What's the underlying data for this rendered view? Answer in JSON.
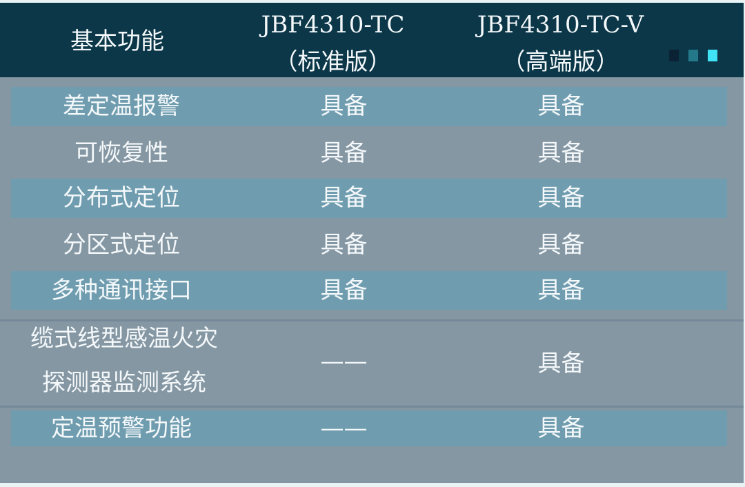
{
  "header": {
    "col1": "基本功能",
    "col2_line1": "JBF4310-TC",
    "col2_line2": "（标准版）",
    "col3_line1": "JBF4310-TC-V",
    "col3_line2": "（高端版）"
  },
  "colors": {
    "header_bg": "#0b3748",
    "body_bg": "#8597a3",
    "stripe_bg": "#6f9daf",
    "indicator": [
      "#0a2233",
      "#23788a",
      "#3fe3f5"
    ]
  },
  "rows": [
    {
      "feature": "差定温报警",
      "standard": "具备",
      "premium": "具备"
    },
    {
      "feature": "可恢复性",
      "standard": "具备",
      "premium": "具备"
    },
    {
      "feature": "分布式定位",
      "standard": "具备",
      "premium": "具备"
    },
    {
      "feature": "分区式定位",
      "standard": "具备",
      "premium": "具备"
    },
    {
      "feature": "多种通讯接口",
      "standard": "具备",
      "premium": "具备"
    },
    {
      "feature_line1": "缆式线型感温火灾",
      "feature_line2": "探测器监测系统",
      "standard": "——",
      "premium": "具备"
    },
    {
      "feature": "定温预警功能",
      "standard": "——",
      "premium": "具备"
    }
  ]
}
